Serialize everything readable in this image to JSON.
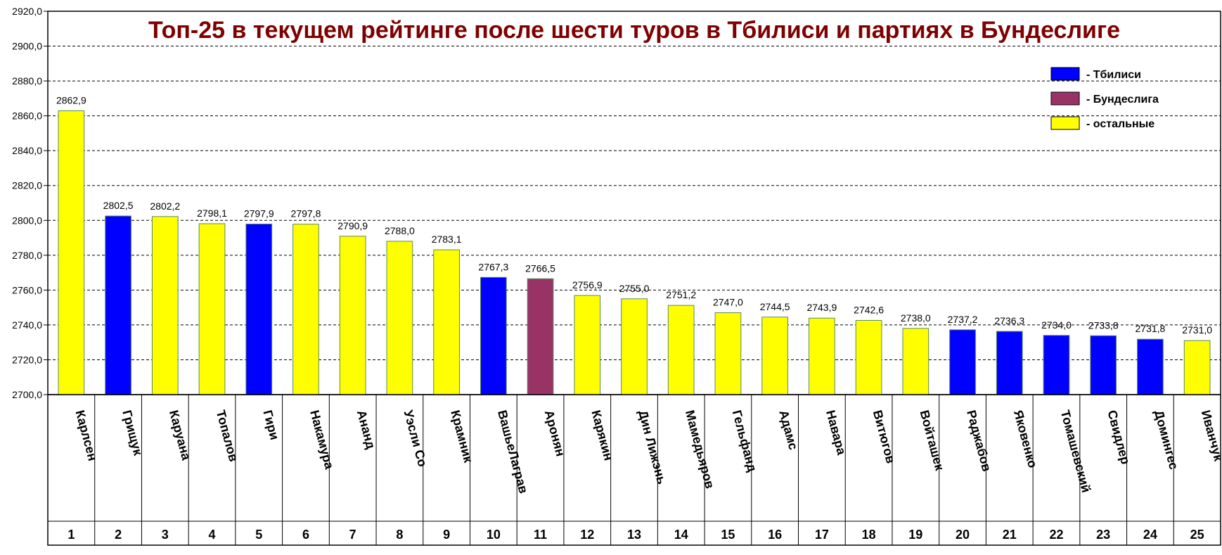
{
  "chart_data": {
    "type": "bar",
    "title": "Топ-25 в текущем рейтинге после шести туров в Тбилиси и партиях в Бундеслиге",
    "ylim": [
      2700,
      2920
    ],
    "ytick_step": 20,
    "ytick_labels": [
      "2700,0",
      "2720,0",
      "2740,0",
      "2760,0",
      "2780,0",
      "2800,0",
      "2820,0",
      "2840,0",
      "2860,0",
      "2880,0",
      "2900,0",
      "2920,0"
    ],
    "grid": true,
    "legend_position": "top-right",
    "legend": [
      {
        "label": "- Тбилиси",
        "color": "#0000ff"
      },
      {
        "label": "- Бундеслига",
        "color": "#993366"
      },
      {
        "label": "- остальные",
        "color": "#ffff00"
      }
    ],
    "bar_outline_color": "#5b8a5b",
    "title_color": "#7f0000",
    "categories": [
      "Карлсен",
      "Грищук",
      "Каруана",
      "Топалов",
      "Гири",
      "Накамура",
      "Ананд",
      "Уэсли Со",
      "Крамник",
      "ВашьеЛаграв",
      "Аронян",
      "Карякин",
      "Дин Лижэнь",
      "Мамедьяров",
      "Гельфанд",
      "Адамс",
      "Навара",
      "Витюгов",
      "Войташек",
      "Раджабов",
      "Яковенко",
      "Томашевский",
      "Свидлер",
      "Домингес",
      "Иванчук"
    ],
    "ranks": [
      "1",
      "2",
      "3",
      "4",
      "5",
      "6",
      "7",
      "8",
      "9",
      "10",
      "11",
      "12",
      "13",
      "14",
      "15",
      "16",
      "17",
      "18",
      "19",
      "20",
      "21",
      "22",
      "23",
      "24",
      "25"
    ],
    "values": [
      2862.9,
      2802.5,
      2802.2,
      2798.1,
      2797.9,
      2797.8,
      2790.9,
      2788.0,
      2783.1,
      2767.3,
      2766.5,
      2756.9,
      2755.0,
      2751.2,
      2747.0,
      2744.5,
      2743.9,
      2742.6,
      2738.0,
      2737.2,
      2736.3,
      2734.0,
      2733.8,
      2731.8,
      2731.0
    ],
    "value_labels": [
      "2862,9",
      "2802,5",
      "2802,2",
      "2798,1",
      "2797,9",
      "2797,8",
      "2790,9",
      "2788,0",
      "2783,1",
      "2767,3",
      "2766,5",
      "2756,9",
      "2755,0",
      "2751,2",
      "2747,0",
      "2744,5",
      "2743,9",
      "2742,6",
      "2738,0",
      "2737,2",
      "2736,3",
      "2734,0",
      "2733,8",
      "2731,8",
      "2731,0"
    ],
    "groups": [
      "other",
      "tbilisi",
      "other",
      "other",
      "tbilisi",
      "other",
      "other",
      "other",
      "other",
      "tbilisi",
      "bundesliga",
      "other",
      "other",
      "other",
      "other",
      "other",
      "other",
      "other",
      "other",
      "tbilisi",
      "tbilisi",
      "tbilisi",
      "tbilisi",
      "tbilisi",
      "other"
    ],
    "group_colors": {
      "tbilisi": "#0000ff",
      "bundesliga": "#993366",
      "other": "#ffff00"
    }
  }
}
